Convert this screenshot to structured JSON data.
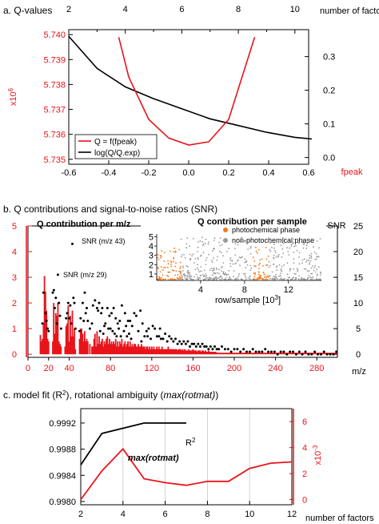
{
  "colors": {
    "red": "#e8141b",
    "black": "#000000",
    "orange": "#f07818",
    "gray": "#999999",
    "grid": "#c8c8c8"
  },
  "chart_data": [
    {
      "type": "line",
      "panel_title": "a. Q-values",
      "x_top": {
        "label": "number of factors",
        "ticks": [
          "2",
          "4",
          "6",
          "8",
          "10"
        ],
        "range": [
          2,
          10.6
        ]
      },
      "x_bottom": {
        "label": "fpeak",
        "ticks": [
          "-0.6",
          "-0.4",
          "-0.2",
          "0.0",
          "0.2",
          "0.4",
          "0.6"
        ],
        "range": [
          -0.6,
          0.6
        ]
      },
      "y_left": {
        "label": "x10",
        "exponent": "6",
        "ticks": [
          "5.735",
          "5.736",
          "5.737",
          "5.738",
          "5.739",
          "5.740"
        ],
        "range": [
          5.7348,
          5.7402
        ]
      },
      "y_right": {
        "ticks": [
          "0.0",
          "0.1",
          "0.2",
          "0.3"
        ],
        "range": [
          -0.02,
          0.38
        ]
      },
      "legend": {
        "placement": "bottom-left",
        "entries": [
          {
            "label": "Q = f(fpeak)",
            "color": "red"
          },
          {
            "label": "log(Q/Q.exp)",
            "color": "black"
          }
        ]
      },
      "series": [
        {
          "name": "Q = f(fpeak)",
          "axis": "bottom-left",
          "color": "red",
          "x": [
            -0.35,
            -0.3,
            -0.2,
            -0.1,
            0.0,
            0.1,
            0.2,
            0.33
          ],
          "y": [
            5.7399,
            5.7383,
            5.7366,
            5.73585,
            5.73557,
            5.7357,
            5.7366,
            5.7399
          ]
        },
        {
          "name": "log(Q/Q.exp)",
          "axis": "top-right",
          "color": "black",
          "x": [
            2,
            3,
            4,
            5,
            6,
            7,
            8,
            9,
            10,
            10.6
          ],
          "y": [
            0.36,
            0.265,
            0.21,
            0.175,
            0.145,
            0.115,
            0.095,
            0.075,
            0.06,
            0.055
          ]
        }
      ]
    },
    {
      "type": "bar",
      "panel_title": "b. Q contributions and signal-to-noise ratios (SNR)",
      "inner_title": "Q contribution per m/z",
      "x": {
        "label": "m/z",
        "ticks": [
          "0",
          "20",
          "40",
          "80",
          "120",
          "160",
          "200",
          "240",
          "280"
        ],
        "range": [
          0,
          300
        ]
      },
      "y_left": {
        "ticks": [
          "0",
          "1",
          "2",
          "3",
          "4",
          "5"
        ],
        "range": [
          -0.12,
          5
        ]
      },
      "y_right": {
        "label": "SNR",
        "ticks": [
          "0",
          "5",
          "10",
          "15",
          "20",
          "25"
        ],
        "range": [
          -0.6,
          25
        ]
      },
      "annotations": [
        {
          "text": "SNR (m/z 43)",
          "x": 43,
          "snr": 21.5
        },
        {
          "text": "SNR (m/z 29)",
          "x": 29,
          "snr": 15.5
        }
      ],
      "bars_q": {
        "mz": [
          12,
          13,
          14,
          15,
          16,
          17,
          18,
          19,
          20,
          24,
          25,
          26,
          27,
          28,
          29,
          30,
          31,
          32,
          36,
          37,
          38,
          39,
          40,
          41,
          42,
          43,
          44,
          45,
          46,
          50,
          51,
          52,
          53,
          54,
          55,
          56,
          57,
          58,
          60,
          62,
          63,
          64,
          65,
          66,
          67,
          68,
          69,
          70,
          71,
          72,
          73,
          74,
          75,
          76,
          77,
          78,
          79,
          80,
          81,
          82,
          83,
          84,
          85,
          86,
          87,
          88,
          89,
          90,
          91,
          92,
          93,
          94,
          95,
          96,
          97,
          98,
          99,
          100,
          101,
          102,
          103,
          104,
          105,
          106,
          107,
          108,
          109,
          110,
          111,
          112,
          113,
          114,
          115,
          116,
          117,
          118,
          119,
          120,
          121,
          122,
          123,
          124,
          125,
          126,
          127,
          128,
          129,
          130,
          131,
          132,
          133,
          134,
          135,
          136,
          137,
          138,
          139,
          140,
          141,
          142,
          143,
          144,
          145,
          146,
          147,
          148,
          149,
          150,
          151,
          152,
          153,
          154,
          155,
          156,
          157,
          158,
          159,
          160,
          161,
          162,
          163,
          164,
          165,
          166,
          167,
          168,
          169,
          170,
          171,
          172,
          173,
          174,
          175,
          176,
          177,
          178,
          179,
          180,
          181,
          182
        ],
        "q": [
          0.75,
          0.5,
          0.6,
          1.2,
          3.05,
          2.45,
          1.7,
          0.6,
          0.5,
          0.5,
          2.0,
          0.8,
          1.6,
          1.5,
          2.0,
          0.5,
          0.4,
          0.3,
          0.3,
          1.1,
          1.2,
          1.9,
          0.5,
          1.5,
          0.7,
          1.7,
          0.7,
          1.0,
          0.2,
          0.6,
          1.0,
          1.0,
          0.8,
          0.5,
          0.9,
          0.5,
          0.6,
          0.5,
          0.4,
          0.3,
          0.3,
          0.6,
          0.8,
          0.3,
          0.9,
          0.4,
          0.7,
          0.4,
          0.5,
          0.6,
          0.3,
          0.5,
          0.4,
          0.6,
          0.7,
          0.4,
          0.6,
          0.4,
          0.5,
          0.4,
          0.5,
          0.4,
          0.6,
          0.3,
          0.5,
          0.3,
          0.5,
          0.4,
          0.6,
          0.3,
          0.4,
          0.5,
          0.3,
          0.4,
          0.5,
          0.3,
          0.5,
          0.3,
          0.4,
          0.3,
          0.4,
          0.4,
          0.3,
          0.3,
          0.4,
          0.3,
          0.3,
          0.4,
          0.3,
          0.3,
          0.3,
          0.2,
          0.3,
          0.3,
          0.2,
          0.3,
          0.2,
          0.3,
          0.2,
          0.3,
          0.2,
          0.2,
          0.3,
          0.2,
          0.3,
          0.2,
          0.2,
          0.3,
          0.2,
          0.2,
          0.2,
          0.2,
          0.2,
          0.3,
          0.2,
          0.2,
          0.2,
          0.2,
          0.2,
          0.2,
          0.2,
          0.2,
          0.15,
          0.2,
          0.2,
          0.2,
          0.15,
          0.2,
          0.15,
          0.2,
          0.15,
          0.15,
          0.15,
          0.2,
          0.15,
          0.15,
          0.15,
          0.2,
          0.15,
          0.15,
          0.15,
          0.1,
          0.15,
          0.15,
          0.15,
          0.1,
          0.15,
          0.15,
          0.1,
          0.15,
          0.1,
          0.1,
          0.15,
          0.1,
          0.1,
          0.1,
          0.1,
          0.1,
          0.1,
          0.1
        ]
      },
      "snr_points": {
        "mz": [
          14,
          15,
          17,
          18,
          19,
          20,
          24,
          25,
          26,
          27,
          28,
          29,
          30,
          31,
          32,
          37,
          38,
          39,
          40,
          41,
          42,
          43,
          44,
          45,
          46,
          50,
          51,
          53,
          54,
          55,
          56,
          57,
          58,
          60,
          62,
          63,
          65,
          67,
          68,
          69,
          70,
          71,
          72,
          73,
          74,
          75,
          77,
          78,
          79,
          80,
          81,
          82,
          83,
          84,
          85,
          86,
          87,
          88,
          89,
          90,
          91,
          93,
          94,
          95,
          96,
          97,
          98,
          99,
          100,
          101,
          103,
          105,
          107,
          109,
          110,
          111,
          113,
          115,
          116,
          117,
          119,
          121,
          123,
          125,
          127,
          128,
          129,
          131,
          133,
          135,
          137,
          139,
          141,
          143,
          145,
          147,
          149,
          151,
          153,
          155,
          157,
          159,
          161,
          163,
          165,
          167,
          169,
          171,
          173,
          175,
          177,
          179,
          181,
          183,
          185,
          188,
          191,
          194,
          197,
          200,
          203,
          206,
          209,
          212,
          215,
          218,
          221,
          224,
          227,
          230,
          233,
          236,
          239,
          242,
          245,
          248,
          251,
          254,
          257,
          260,
          263,
          266,
          269,
          272,
          275,
          278,
          281,
          284,
          287,
          290,
          293,
          296,
          299
        ],
        "snr": [
          6.0,
          12.0,
          8.0,
          6.5,
          5.0,
          4.5,
          12.0,
          12.5,
          9.0,
          11.0,
          6.0,
          15.5,
          10.0,
          7.5,
          5.0,
          7.0,
          8.0,
          10.0,
          7.0,
          9.5,
          6.0,
          21.5,
          11.0,
          10.0,
          5.0,
          4.5,
          7.0,
          10.0,
          6.5,
          12.0,
          8.0,
          9.0,
          6.5,
          5.0,
          6.0,
          9.5,
          10.5,
          9.0,
          8.5,
          10.0,
          4.5,
          8.0,
          9.0,
          4.0,
          5.5,
          6.0,
          9.0,
          5.0,
          7.5,
          5.0,
          8.0,
          4.5,
          9.0,
          4.0,
          7.0,
          3.5,
          6.0,
          5.0,
          6.5,
          3.5,
          9.5,
          4.5,
          8.0,
          5.5,
          3.5,
          6.5,
          4.0,
          6.5,
          3.0,
          5.5,
          8.0,
          7.5,
          4.5,
          8.5,
          2.5,
          6.0,
          3.5,
          4.5,
          3.5,
          5.0,
          3.0,
          5.5,
          5.0,
          3.5,
          3.5,
          5.0,
          3.0,
          3.0,
          4.0,
          2.5,
          3.5,
          3.0,
          2.5,
          3.0,
          2.0,
          2.5,
          2.0,
          2.5,
          2.0,
          2.5,
          1.5,
          2.0,
          2.0,
          1.5,
          2.0,
          1.5,
          2.0,
          1.5,
          1.5,
          1.0,
          1.5,
          1.0,
          1.5,
          1.0,
          1.0,
          1.5,
          1.0,
          1.0,
          0.5,
          1.0,
          1.0,
          0.5,
          1.0,
          0.5,
          0.5,
          1.0,
          0.5,
          0.5,
          0.5,
          1.0,
          0.5,
          0.5,
          0.5,
          0.0,
          0.5,
          0.5,
          0.0,
          0.5,
          0.5,
          0.0,
          0.5,
          0.0,
          0.5,
          0.0,
          0.0,
          0.5,
          0.0,
          0.0,
          0.5,
          0.0,
          0.0,
          0.0,
          0.5
        ]
      },
      "inset": {
        "title": "Q contribution per sample",
        "xlabel": "row/sample [10",
        "xlabel_exp": "3",
        "xlabel_end": "]",
        "x_ticks": [
          "4",
          "8",
          "12"
        ],
        "x_range": [
          0,
          15
        ],
        "y_ticks": [
          "1",
          "2",
          "3",
          "4",
          "5"
        ],
        "y_range": [
          0.3,
          5.3
        ],
        "legend": [
          {
            "label": "photochemical phase",
            "color": "orange"
          },
          {
            "label": "non-photochemical phase",
            "color": "gray"
          }
        ],
        "photochemical_segments": [
          [
            0,
            2.2
          ],
          [
            8.8,
            10.2
          ]
        ],
        "nonphotochemical_segments": [
          [
            2.2,
            8.8
          ],
          [
            10.2,
            15
          ]
        ]
      }
    },
    {
      "type": "line",
      "panel_title": "c. model fit (R",
      "panel_title_sup": "2",
      "panel_title_mid": "), rotational ambiguity (",
      "panel_title_em": "max(rotmat)",
      "panel_title_end": ")",
      "x": {
        "label": "number of factors",
        "ticks": [
          "2",
          "4",
          "6",
          "8",
          "10",
          "12"
        ],
        "range": [
          2,
          12
        ]
      },
      "y_left": {
        "ticks": [
          "0.9980",
          "0.9984",
          "0.9988",
          "0.9992"
        ],
        "range": [
          0.99795,
          0.99942
        ]
      },
      "y_right": {
        "label": "x10",
        "exponent": "-3",
        "ticks": [
          "0",
          "2",
          "4",
          "6"
        ],
        "range": [
          -0.4,
          7
        ]
      },
      "grid_x": [
        4,
        6,
        8,
        10,
        12
      ],
      "series": [
        {
          "name": "R2",
          "label": "R",
          "label_sup": "2",
          "color": "black",
          "axis": "left",
          "x": [
            2,
            3,
            4,
            5,
            6,
            7
          ],
          "y": [
            0.99856,
            0.99904,
            0.99912,
            0.9992,
            0.9992,
            0.9992
          ]
        },
        {
          "name": "max(rotmat)",
          "label": "max(rotmat)",
          "color": "red",
          "axis": "right",
          "x": [
            2,
            3,
            4,
            5,
            6,
            7,
            8,
            9,
            10,
            11,
            12
          ],
          "y": [
            0.0,
            2.2,
            3.9,
            1.6,
            1.3,
            1.1,
            1.4,
            1.4,
            2.4,
            2.8,
            2.9
          ]
        }
      ]
    }
  ]
}
